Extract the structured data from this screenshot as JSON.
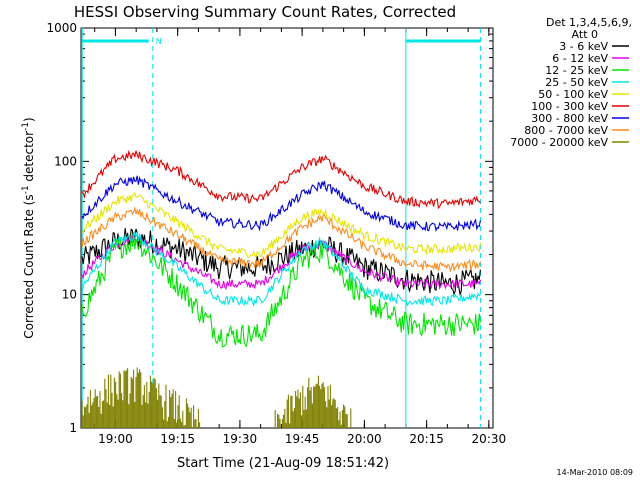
{
  "chart_data": {
    "type": "line",
    "title": "HESSI Observing Summary Count Rates, Corrected",
    "xlabel": "Start Time (21-Aug-09 18:51:42)",
    "ylabel_main": "Corrected Count Rate (s",
    "ylabel_sup1": "-1",
    "ylabel_mid": " detector",
    "ylabel_sup2": "-1",
    "ylabel_end": ")",
    "xlim": [
      "18:51:42",
      "20:31:00"
    ],
    "ylim": [
      1,
      1000
    ],
    "yscale": "log",
    "xticks": [
      "19:00",
      "19:15",
      "19:30",
      "19:45",
      "20:00",
      "20:15",
      "20:30"
    ],
    "yticks": [
      "1",
      "10",
      "100",
      "1000"
    ],
    "legend_title_1": "Det 1,3,4,5,6,9,",
    "legend_title_2": "Att 0",
    "legend_position": "right",
    "timestamp": "14-Mar-2010 08:09",
    "night_marker": "N",
    "vertical_markers": [
      "19:09:00",
      "20:10:00",
      "20:28:00"
    ],
    "series": [
      {
        "name": "3 - 6 keV",
        "color": "#000000",
        "x": [
          "18:51:42",
          "19:00",
          "19:05",
          "19:15",
          "19:25",
          "19:35",
          "19:45",
          "19:50",
          "20:00",
          "20:10",
          "20:20",
          "20:28"
        ],
        "values": [
          18,
          25,
          27,
          22,
          16,
          16,
          22,
          24,
          16,
          13,
          12,
          13
        ]
      },
      {
        "name": "6 - 12 keV",
        "color": "#e600e6",
        "x": [
          "18:51:42",
          "19:00",
          "19:05",
          "19:15",
          "19:25",
          "19:35",
          "19:45",
          "19:50",
          "20:00",
          "20:10",
          "20:20",
          "20:28"
        ],
        "values": [
          14,
          24,
          27,
          18,
          12,
          12,
          22,
          24,
          15,
          12,
          12,
          12
        ]
      },
      {
        "name": "12 - 25 keV",
        "color": "#00e600",
        "x": [
          "18:51:42",
          "19:00",
          "19:05",
          "19:15",
          "19:25",
          "19:35",
          "19:45",
          "19:50",
          "20:00",
          "20:10",
          "20:20",
          "20:28"
        ],
        "values": [
          7,
          22,
          26,
          12,
          5,
          5,
          18,
          22,
          9,
          6,
          6,
          6
        ]
      },
      {
        "name": "25 - 50 keV",
        "color": "#00e6e6",
        "x": [
          "18:51:42",
          "19:00",
          "19:05",
          "19:15",
          "19:25",
          "19:35",
          "19:45",
          "19:50",
          "20:00",
          "20:10",
          "20:20",
          "20:28"
        ],
        "values": [
          11,
          25,
          28,
          16,
          9,
          9,
          22,
          25,
          11,
          9,
          9,
          10
        ]
      },
      {
        "name": "50 - 100 keV",
        "color": "#e6e600",
        "x": [
          "18:51:42",
          "19:00",
          "19:05",
          "19:15",
          "19:25",
          "19:35",
          "19:45",
          "19:50",
          "20:00",
          "20:10",
          "20:20",
          "20:28"
        ],
        "values": [
          30,
          50,
          55,
          35,
          22,
          20,
          38,
          42,
          28,
          22,
          22,
          23
        ]
      },
      {
        "name": "100 - 300 keV",
        "color": "#e60000",
        "x": [
          "18:51:42",
          "19:00",
          "19:05",
          "19:15",
          "19:25",
          "19:35",
          "19:45",
          "19:50",
          "20:00",
          "20:10",
          "20:20",
          "20:28"
        ],
        "values": [
          55,
          105,
          112,
          85,
          55,
          52,
          90,
          105,
          65,
          50,
          48,
          52
        ]
      },
      {
        "name": "300 - 800 keV",
        "color": "#0000e6",
        "x": [
          "18:51:42",
          "19:00",
          "19:05",
          "19:15",
          "19:25",
          "19:35",
          "19:45",
          "19:50",
          "20:00",
          "20:10",
          "20:20",
          "20:28"
        ],
        "values": [
          38,
          68,
          73,
          50,
          35,
          33,
          56,
          68,
          42,
          33,
          32,
          34
        ]
      },
      {
        "name": "800 - 7000 keV",
        "color": "#ff8c1a",
        "x": [
          "18:51:42",
          "19:00",
          "19:05",
          "19:15",
          "19:25",
          "19:35",
          "19:45",
          "19:50",
          "20:00",
          "20:10",
          "20:20",
          "20:28"
        ],
        "values": [
          24,
          38,
          42,
          28,
          18,
          17,
          32,
          38,
          23,
          17,
          16,
          17
        ]
      },
      {
        "name": "7000 - 20000 keV",
        "color": "#808000",
        "x": [
          "18:51:42",
          "19:00",
          "19:05",
          "19:15",
          "19:25",
          "19:35",
          "19:45",
          "19:50",
          "20:00",
          "20:10",
          "20:20",
          "20:28"
        ],
        "values": [
          1.9,
          2.6,
          2.8,
          1.8,
          1,
          1,
          2.2,
          2.5,
          1,
          1,
          1,
          1
        ]
      }
    ]
  }
}
